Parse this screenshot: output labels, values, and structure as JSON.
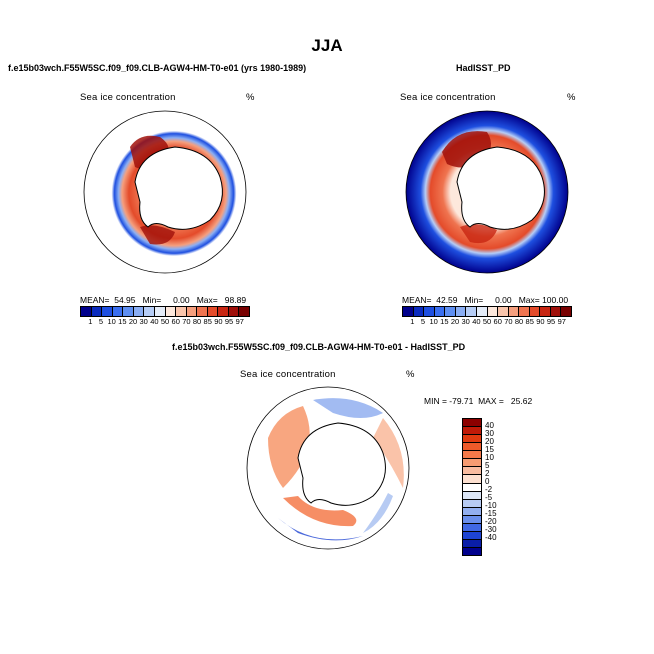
{
  "figure": {
    "title": "JJA"
  },
  "panels": {
    "model": {
      "subtitle": "f.e15b03wch.F55W5SC.f09_f09.CLB-AGW4-HM-T0-e01 (yrs 1980-1989)",
      "variable": "Sea ice concentration",
      "units": "%",
      "stats": "MEAN=  54.95   Min=     0.00   Max=   98.89"
    },
    "obs": {
      "subtitle": "HadISST_PD",
      "variable": "Sea ice concentration",
      "units": "%",
      "stats": "MEAN=  42.59   Min=     0.00   Max= 100.00"
    },
    "diff": {
      "subtitle": "f.e15b03wch.F55W5SC.f09_f09.CLB-AGW4-HM-T0-e01 - HadISST_PD",
      "variable": "Sea ice concentration",
      "units": "%",
      "stats": "MIN = -79.71  MAX =   25.62"
    }
  },
  "colorbars": {
    "concentration": {
      "labels": [
        "1",
        "5",
        "10",
        "15",
        "20",
        "30",
        "40",
        "50",
        "60",
        "70",
        "80",
        "85",
        "90",
        "95",
        "97"
      ],
      "colors": [
        "#00008c",
        "#0a2bbf",
        "#1e4fe0",
        "#3a6ff0",
        "#5e8ff2",
        "#8aaef4",
        "#b6cdf6",
        "#e4ecf8",
        "#fde8dc",
        "#f9c5ac",
        "#f59f7e",
        "#ef7450",
        "#e44b2a",
        "#c82612",
        "#a0100a",
        "#780000"
      ]
    },
    "difference": {
      "labels": [
        "40",
        "30",
        "20",
        "15",
        "10",
        "5",
        "2",
        "0",
        "-2",
        "-5",
        "-10",
        "-15",
        "-20",
        "-30",
        "-40"
      ],
      "colors": [
        "#8c0000",
        "#c01a08",
        "#e03a10",
        "#ef5a2a",
        "#f57a4a",
        "#f79c72",
        "#f9bca0",
        "#fde0d0",
        "#ffffff",
        "#dce6f7",
        "#b7cbf3",
        "#92aff0",
        "#6a8fec",
        "#4068e4",
        "#1e44d2",
        "#0a1ea8",
        "#00008c"
      ]
    }
  }
}
